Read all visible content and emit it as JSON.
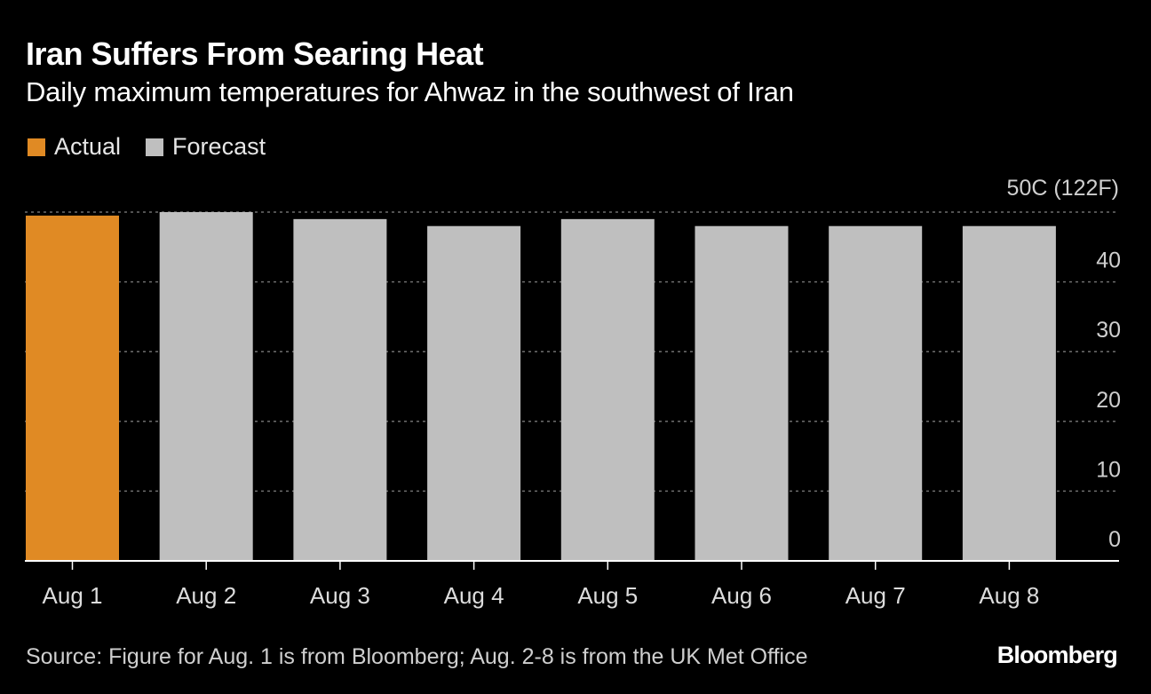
{
  "header": {
    "title": "Iran Suffers From Searing Heat",
    "subtitle": "Daily maximum temperatures for Ahwaz in the southwest of Iran"
  },
  "legend": [
    {
      "label": "Actual",
      "color": "#e08a24"
    },
    {
      "label": "Forecast",
      "color": "#bfbfbf"
    }
  ],
  "axis_unit_label": "50C (122F)",
  "chart_data": {
    "type": "bar",
    "title": "Iran Suffers From Searing Heat",
    "subtitle": "Daily maximum temperatures for Ahwaz in the southwest of Iran",
    "xlabel": "",
    "ylabel": "50C (122F)",
    "categories": [
      "Aug 1",
      "Aug 2",
      "Aug 3",
      "Aug 4",
      "Aug 5",
      "Aug 6",
      "Aug 7",
      "Aug 8"
    ],
    "values": [
      49.5,
      50,
      49,
      48,
      49,
      48,
      48,
      48
    ],
    "series_type": [
      "Actual",
      "Forecast",
      "Forecast",
      "Forecast",
      "Forecast",
      "Forecast",
      "Forecast",
      "Forecast"
    ],
    "ylim": [
      0,
      50
    ],
    "yticks": [
      0,
      10,
      20,
      30,
      40,
      50
    ],
    "ytick_labels": [
      "0",
      "10",
      "20",
      "30",
      "40",
      ""
    ],
    "grid": true,
    "y_axis_side": "right",
    "legend_position": "top-left"
  },
  "footer": {
    "source": "Source: Figure for Aug. 1 is from Bloomberg; Aug. 2-8 is from the UK Met Office",
    "brand": "Bloomberg"
  }
}
